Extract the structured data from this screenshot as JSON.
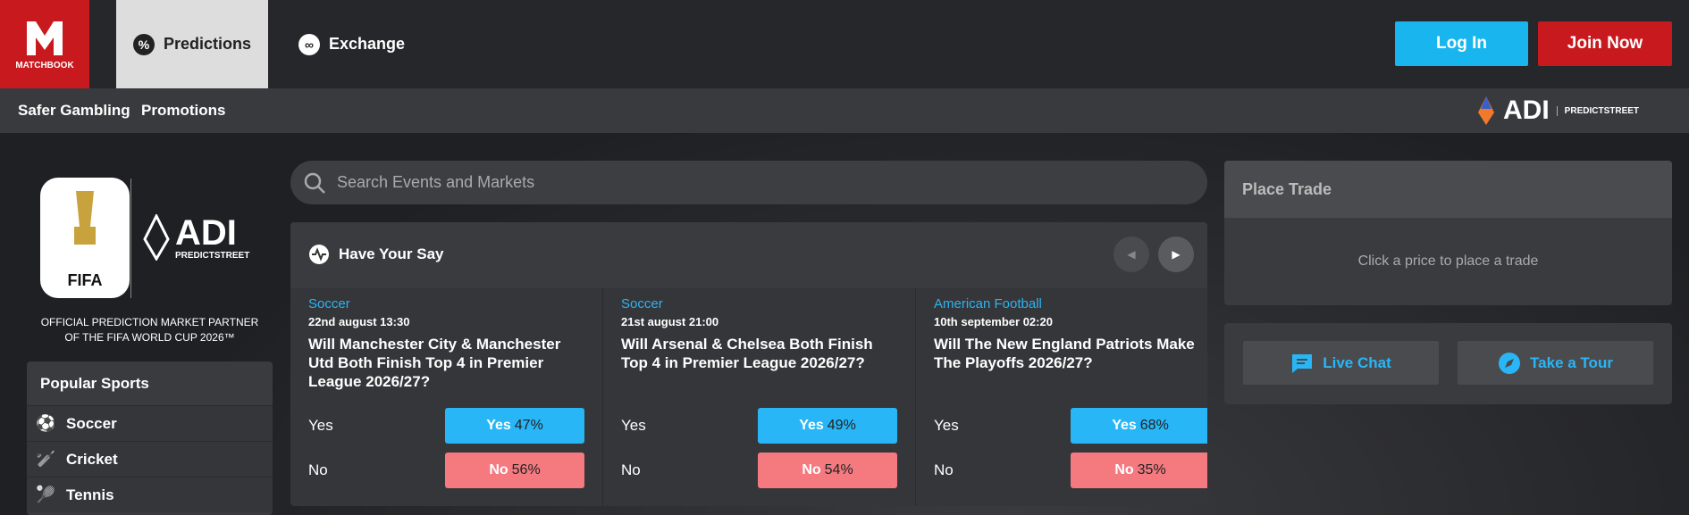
{
  "header": {
    "logo": "MATCHBOOK",
    "tabs": [
      "Predictions",
      "Exchange"
    ],
    "login": "Log In",
    "join": "Join Now"
  },
  "subnav": {
    "links": [
      "Safer Gambling",
      "Promotions"
    ],
    "partner": {
      "name": "ADI",
      "sub": "PREDICTSTREET"
    }
  },
  "banner": {
    "fifa": "FIFA",
    "partner": "ADI",
    "partner_sub": "PREDICTSTREET",
    "caption": [
      "OFFICIAL PREDICTION MARKET PARTNER",
      "OF THE FIFA WORLD CUP 2026™"
    ]
  },
  "popular_sports": {
    "title": "Popular Sports",
    "items": [
      "Soccer",
      "Cricket",
      "Tennis"
    ]
  },
  "search": {
    "placeholder": "Search Events and Markets"
  },
  "have_your_say": {
    "title": "Have Your Say",
    "cards": [
      {
        "sport": "Soccer",
        "date": "22nd august 13:30",
        "question": "Will Manchester City & Manchester Utd Both Finish Top 4 in Premier League 2026/27?",
        "yes_label": "Yes",
        "no_label": "No",
        "yes_button": {
          "text": "Yes",
          "pct": "47%"
        },
        "no_button": {
          "text": "No",
          "pct": "56%"
        }
      },
      {
        "sport": "Soccer",
        "date": "21st august 21:00",
        "question": "Will Arsenal & Chelsea Both Finish Top 4 in Premier League 2026/27?",
        "yes_label": "Yes",
        "no_label": "No",
        "yes_button": {
          "text": "Yes",
          "pct": "49%"
        },
        "no_button": {
          "text": "No",
          "pct": "54%"
        }
      },
      {
        "sport": "American Football",
        "date": "10th september 02:20",
        "question": "Will The New England Patriots Make The Playoffs 2026/27?",
        "yes_label": "Yes",
        "no_label": "No",
        "yes_button": {
          "text": "Yes",
          "pct": "68%"
        },
        "no_button": {
          "text": "No",
          "pct": "35%"
        }
      }
    ]
  },
  "place_trade": {
    "title": "Place Trade",
    "hint": "Click a price to place a trade"
  },
  "help": {
    "live_chat": "Live Chat",
    "tour": "Take a Tour"
  }
}
